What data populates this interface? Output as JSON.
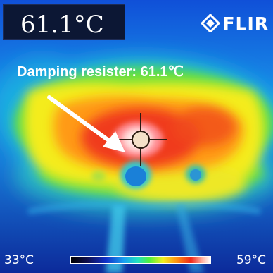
{
  "header": {
    "temperature_readout": "61.1°C",
    "brand": "FLIR",
    "brand_icon": "flir-diamond-logo-icon"
  },
  "annotation": {
    "label": "Damping resister: 61.1℃",
    "arrow_icon": "arrow-icon"
  },
  "crosshair": {
    "icon": "spot-meter-crosshair-icon"
  },
  "scale": {
    "min_label": "33°C",
    "max_label": "59°C"
  },
  "colors": {
    "cold": "#0a1a7a",
    "cool": "#1aa0f0",
    "mid": "#f0f020",
    "warm": "#ff9010",
    "hot": "#f02818",
    "hottest": "#ffe8d8"
  }
}
